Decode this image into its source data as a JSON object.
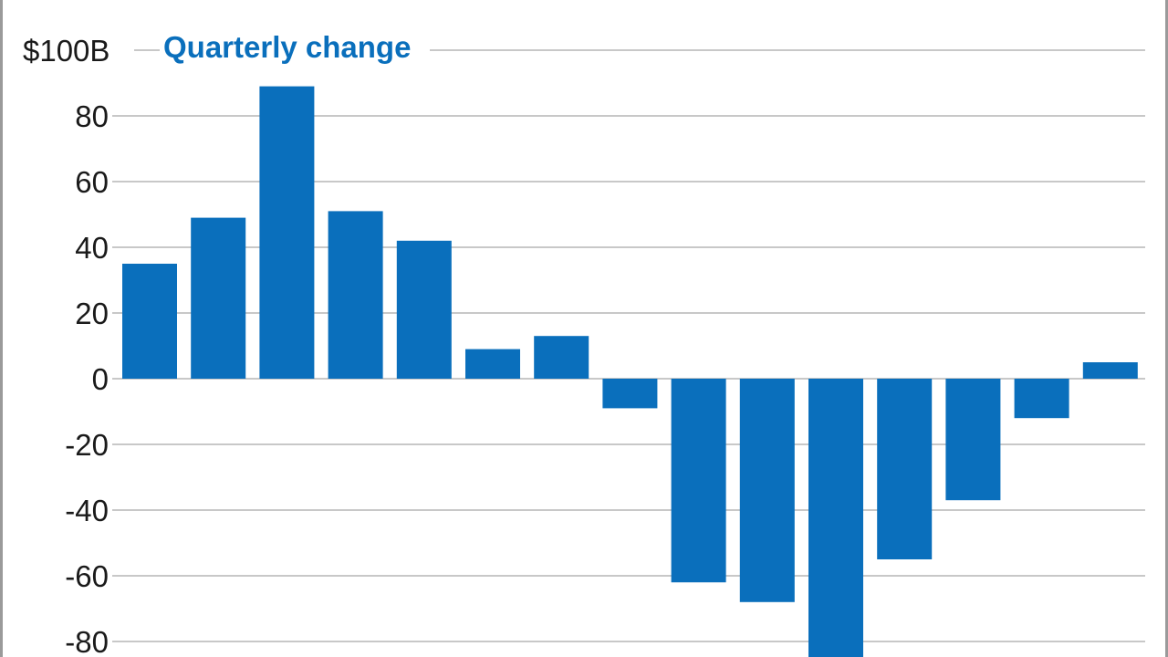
{
  "chart_data": {
    "type": "bar",
    "title": "Quarterly change",
    "unit_label": "$100B",
    "title_color": "#0a6fbc",
    "bar_color": "#0a6fbc",
    "ylim": [
      -85,
      100
    ],
    "y_ticks": [
      {
        "value": 100,
        "label": "$100B"
      },
      {
        "value": 80,
        "label": "80"
      },
      {
        "value": 60,
        "label": "60"
      },
      {
        "value": 40,
        "label": "40"
      },
      {
        "value": 20,
        "label": "20"
      },
      {
        "value": 0,
        "label": "0"
      },
      {
        "value": -20,
        "label": "-20"
      },
      {
        "value": -40,
        "label": "-40"
      },
      {
        "value": -60,
        "label": "-60"
      },
      {
        "value": -80,
        "label": "-80"
      }
    ],
    "grid": true,
    "values": [
      35,
      49,
      89,
      51,
      42,
      9,
      13,
      -9,
      -62,
      -68,
      -85,
      -55,
      -37,
      -12,
      5
    ]
  }
}
